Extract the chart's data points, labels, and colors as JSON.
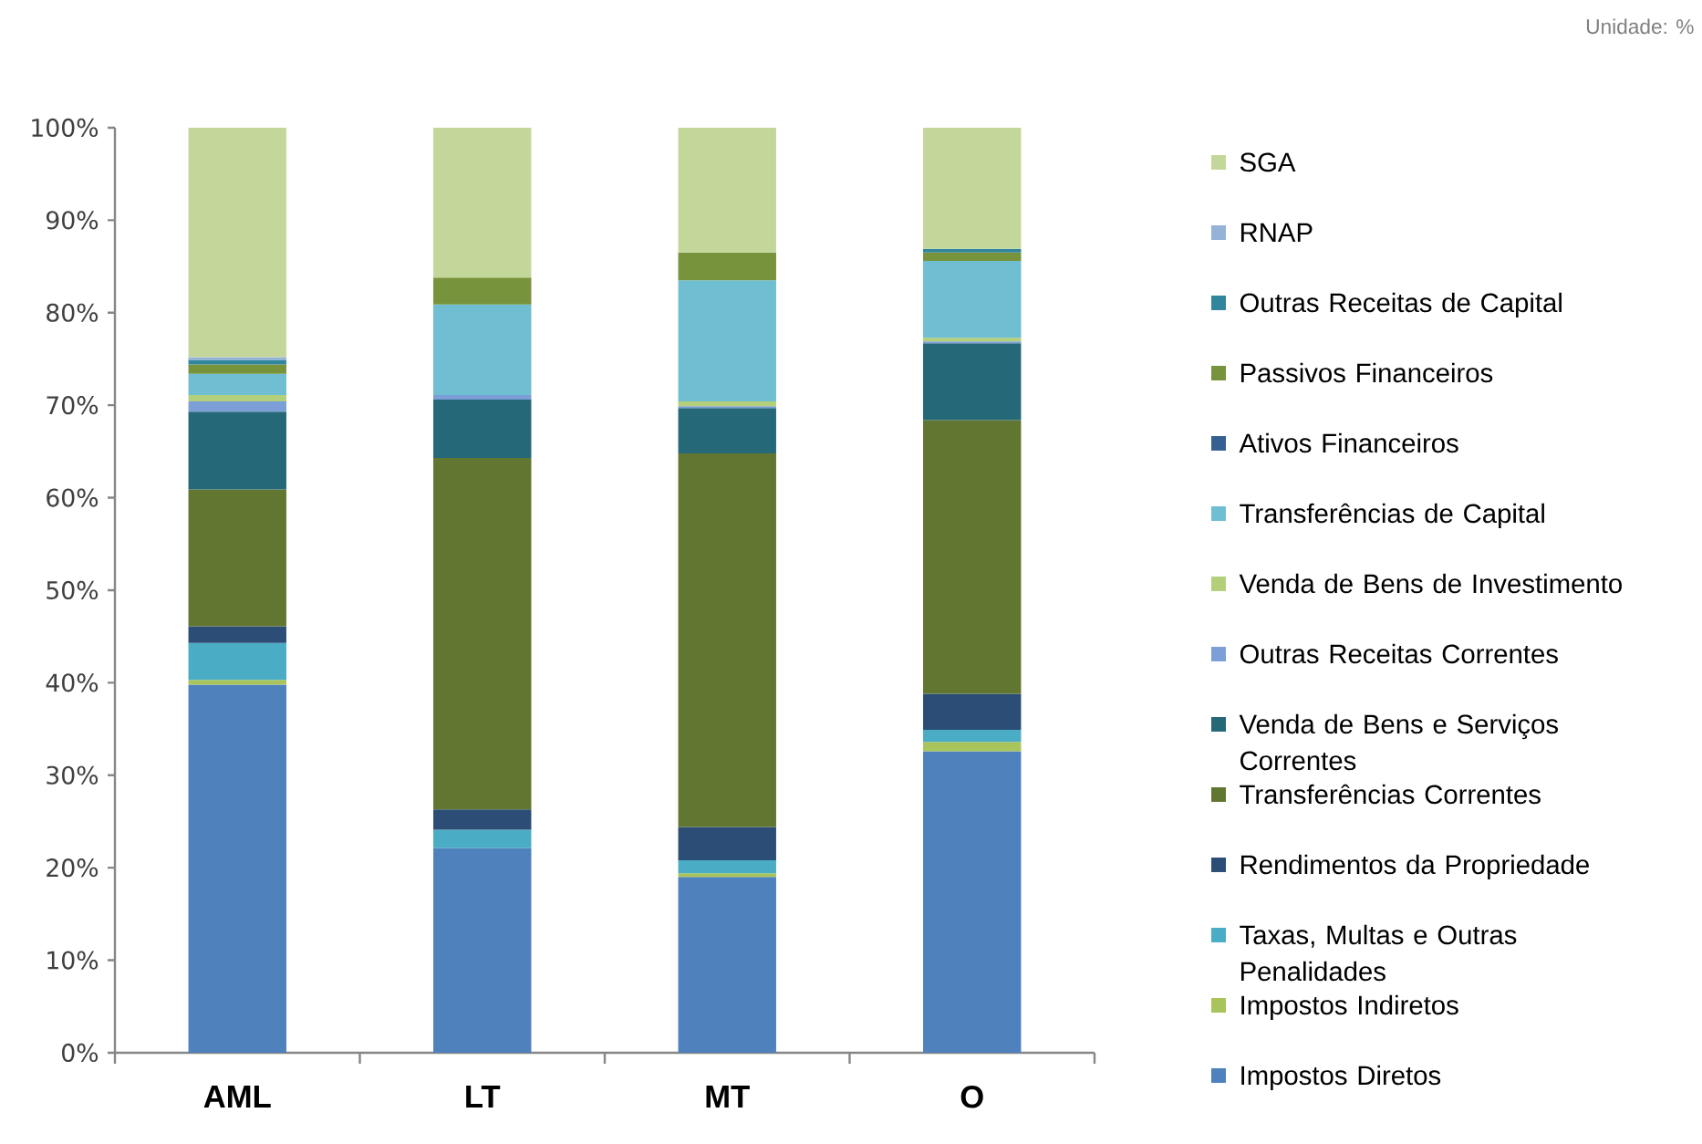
{
  "chart_data": {
    "type": "bar",
    "stacked": true,
    "categories": [
      "AML",
      "LT",
      "MT",
      "O"
    ],
    "series": [
      {
        "name": "Impostos Diretos",
        "color": "#4f81bd",
        "values": [
          39.8,
          22.1,
          19.0,
          32.6
        ]
      },
      {
        "name": "Impostos Indiretos",
        "color": "#a9c45a",
        "values": [
          0.5,
          null,
          0.4,
          1.0
        ]
      },
      {
        "name": "Taxas, Multas e Outras Penalidades",
        "color": "#4bacc6",
        "values": [
          4.0,
          2.0,
          1.4,
          1.3
        ]
      },
      {
        "name": "Rendimentos da Propriedade",
        "color": "#2c4d75",
        "values": [
          1.8,
          2.2,
          3.6,
          3.9
        ]
      },
      {
        "name": "Transferências Correntes",
        "color": "#617731",
        "values": [
          14.8,
          38.0,
          40.4,
          29.6
        ]
      },
      {
        "name": "Venda de Bens e Serviços Correntes",
        "color": "#256878",
        "values": [
          8.4,
          6.3,
          4.9,
          8.3
        ]
      },
      {
        "name": "Outras Receitas Correntes",
        "color": "#7b9fd6",
        "values": [
          1.1,
          0.5,
          0.2,
          0.2
        ]
      },
      {
        "name": "Venda de Bens de Investimento",
        "color": "#b3cf7a",
        "values": [
          0.7,
          null,
          0.5,
          0.4
        ]
      },
      {
        "name": "Transferências de Capital",
        "color": "#70bed1",
        "values": [
          2.3,
          9.8,
          13.1,
          8.3
        ]
      },
      {
        "name": "Ativos Financeiros",
        "color": "#376092",
        "values": [
          null,
          null,
          null,
          null
        ]
      },
      {
        "name": "Passivos Financeiros",
        "color": "#77933c",
        "values": [
          1.0,
          2.9,
          3.0,
          0.9
        ]
      },
      {
        "name": "Outras Receitas de Capital",
        "color": "#31859c",
        "values": [
          0.5,
          null,
          null,
          0.4
        ]
      },
      {
        "name": "RNAP",
        "color": "#95b3d7",
        "values": [
          0.3,
          null,
          null,
          null
        ]
      },
      {
        "name": "SGA",
        "color": "#c4d79b",
        "values": [
          24.8,
          16.2,
          13.5,
          13.1
        ]
      }
    ],
    "ylim": [
      0,
      100
    ],
    "yticks": [
      {
        "value": 0,
        "label": "0%"
      },
      {
        "value": 10,
        "label": "10%"
      },
      {
        "value": 20,
        "label": "20%"
      },
      {
        "value": 30,
        "label": "30%"
      },
      {
        "value": 40,
        "label": "40%"
      },
      {
        "value": 50,
        "label": "50%"
      },
      {
        "value": 60,
        "label": "60%"
      },
      {
        "value": 70,
        "label": "70%"
      },
      {
        "value": 80,
        "label": "80%"
      },
      {
        "value": 90,
        "label": "90%"
      },
      {
        "value": 100,
        "label": "100%"
      }
    ],
    "legend": "right",
    "annotations": [
      "Unidade: %"
    ]
  }
}
